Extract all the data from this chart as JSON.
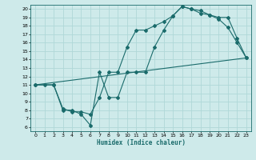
{
  "xlabel": "Humidex (Indice chaleur)",
  "bg_color": "#ceeaea",
  "grid_color": "#b0d8d8",
  "line_color": "#1a6b6b",
  "xlim": [
    -0.5,
    23.5
  ],
  "ylim": [
    5.5,
    20.5
  ],
  "xticks": [
    0,
    1,
    2,
    3,
    4,
    5,
    6,
    7,
    8,
    9,
    10,
    11,
    12,
    13,
    14,
    15,
    16,
    17,
    18,
    19,
    20,
    21,
    22,
    23
  ],
  "yticks": [
    6,
    7,
    8,
    9,
    10,
    11,
    12,
    13,
    14,
    15,
    16,
    17,
    18,
    19,
    20
  ],
  "line1_x": [
    0,
    1,
    2,
    3,
    4,
    5,
    6,
    7,
    8,
    9,
    10,
    11,
    12,
    13,
    14,
    15,
    16,
    17,
    18,
    19,
    20,
    21,
    22,
    23
  ],
  "line1_y": [
    11,
    11,
    11,
    8.2,
    7.8,
    7.8,
    7.5,
    9.5,
    12.5,
    12.5,
    15.5,
    17.5,
    17.5,
    18.0,
    18.5,
    19.2,
    20.3,
    20.0,
    19.8,
    19.3,
    18.8,
    17.8,
    16.0,
    14.2
  ],
  "line2_x": [
    0,
    2,
    3,
    4,
    5,
    6,
    7,
    8,
    9,
    10,
    11,
    12,
    13,
    14,
    15,
    16,
    17,
    18,
    19,
    20,
    21,
    22,
    23
  ],
  "line2_y": [
    11,
    11,
    8.0,
    8.0,
    7.5,
    6.2,
    12.5,
    9.5,
    9.5,
    12.5,
    12.5,
    12.5,
    15.5,
    17.5,
    19.2,
    20.3,
    20.0,
    19.5,
    19.3,
    19.0,
    19.0,
    16.5,
    14.2
  ],
  "line3_x": [
    0,
    23
  ],
  "line3_y": [
    11,
    14.2
  ]
}
